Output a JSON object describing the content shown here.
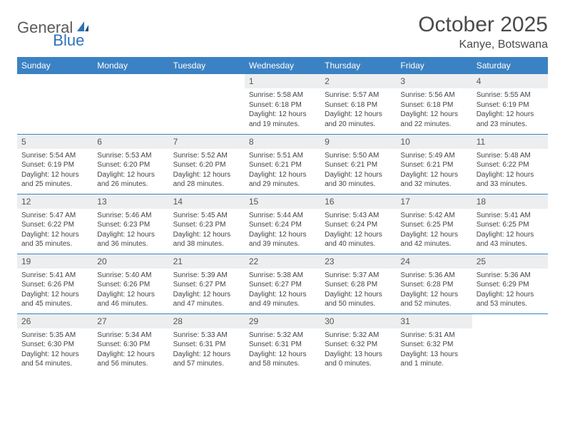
{
  "logo": {
    "general": "General",
    "blue": "Blue"
  },
  "title": "October 2025",
  "location": "Kanye, Botswana",
  "colors": {
    "header_bg": "#3b82c4",
    "header_text": "#ffffff",
    "daynum_bg": "#eceeef",
    "border": "#3b82c4",
    "text": "#444444",
    "logo_gray": "#5a5a5a",
    "logo_blue": "#2f72b8"
  },
  "day_headers": [
    "Sunday",
    "Monday",
    "Tuesday",
    "Wednesday",
    "Thursday",
    "Friday",
    "Saturday"
  ],
  "weeks": [
    [
      {
        "n": "",
        "sr": "",
        "ss": "",
        "dl": ""
      },
      {
        "n": "",
        "sr": "",
        "ss": "",
        "dl": ""
      },
      {
        "n": "",
        "sr": "",
        "ss": "",
        "dl": ""
      },
      {
        "n": "1",
        "sr": "Sunrise: 5:58 AM",
        "ss": "Sunset: 6:18 PM",
        "dl": "Daylight: 12 hours and 19 minutes."
      },
      {
        "n": "2",
        "sr": "Sunrise: 5:57 AM",
        "ss": "Sunset: 6:18 PM",
        "dl": "Daylight: 12 hours and 20 minutes."
      },
      {
        "n": "3",
        "sr": "Sunrise: 5:56 AM",
        "ss": "Sunset: 6:18 PM",
        "dl": "Daylight: 12 hours and 22 minutes."
      },
      {
        "n": "4",
        "sr": "Sunrise: 5:55 AM",
        "ss": "Sunset: 6:19 PM",
        "dl": "Daylight: 12 hours and 23 minutes."
      }
    ],
    [
      {
        "n": "5",
        "sr": "Sunrise: 5:54 AM",
        "ss": "Sunset: 6:19 PM",
        "dl": "Daylight: 12 hours and 25 minutes."
      },
      {
        "n": "6",
        "sr": "Sunrise: 5:53 AM",
        "ss": "Sunset: 6:20 PM",
        "dl": "Daylight: 12 hours and 26 minutes."
      },
      {
        "n": "7",
        "sr": "Sunrise: 5:52 AM",
        "ss": "Sunset: 6:20 PM",
        "dl": "Daylight: 12 hours and 28 minutes."
      },
      {
        "n": "8",
        "sr": "Sunrise: 5:51 AM",
        "ss": "Sunset: 6:21 PM",
        "dl": "Daylight: 12 hours and 29 minutes."
      },
      {
        "n": "9",
        "sr": "Sunrise: 5:50 AM",
        "ss": "Sunset: 6:21 PM",
        "dl": "Daylight: 12 hours and 30 minutes."
      },
      {
        "n": "10",
        "sr": "Sunrise: 5:49 AM",
        "ss": "Sunset: 6:21 PM",
        "dl": "Daylight: 12 hours and 32 minutes."
      },
      {
        "n": "11",
        "sr": "Sunrise: 5:48 AM",
        "ss": "Sunset: 6:22 PM",
        "dl": "Daylight: 12 hours and 33 minutes."
      }
    ],
    [
      {
        "n": "12",
        "sr": "Sunrise: 5:47 AM",
        "ss": "Sunset: 6:22 PM",
        "dl": "Daylight: 12 hours and 35 minutes."
      },
      {
        "n": "13",
        "sr": "Sunrise: 5:46 AM",
        "ss": "Sunset: 6:23 PM",
        "dl": "Daylight: 12 hours and 36 minutes."
      },
      {
        "n": "14",
        "sr": "Sunrise: 5:45 AM",
        "ss": "Sunset: 6:23 PM",
        "dl": "Daylight: 12 hours and 38 minutes."
      },
      {
        "n": "15",
        "sr": "Sunrise: 5:44 AM",
        "ss": "Sunset: 6:24 PM",
        "dl": "Daylight: 12 hours and 39 minutes."
      },
      {
        "n": "16",
        "sr": "Sunrise: 5:43 AM",
        "ss": "Sunset: 6:24 PM",
        "dl": "Daylight: 12 hours and 40 minutes."
      },
      {
        "n": "17",
        "sr": "Sunrise: 5:42 AM",
        "ss": "Sunset: 6:25 PM",
        "dl": "Daylight: 12 hours and 42 minutes."
      },
      {
        "n": "18",
        "sr": "Sunrise: 5:41 AM",
        "ss": "Sunset: 6:25 PM",
        "dl": "Daylight: 12 hours and 43 minutes."
      }
    ],
    [
      {
        "n": "19",
        "sr": "Sunrise: 5:41 AM",
        "ss": "Sunset: 6:26 PM",
        "dl": "Daylight: 12 hours and 45 minutes."
      },
      {
        "n": "20",
        "sr": "Sunrise: 5:40 AM",
        "ss": "Sunset: 6:26 PM",
        "dl": "Daylight: 12 hours and 46 minutes."
      },
      {
        "n": "21",
        "sr": "Sunrise: 5:39 AM",
        "ss": "Sunset: 6:27 PM",
        "dl": "Daylight: 12 hours and 47 minutes."
      },
      {
        "n": "22",
        "sr": "Sunrise: 5:38 AM",
        "ss": "Sunset: 6:27 PM",
        "dl": "Daylight: 12 hours and 49 minutes."
      },
      {
        "n": "23",
        "sr": "Sunrise: 5:37 AM",
        "ss": "Sunset: 6:28 PM",
        "dl": "Daylight: 12 hours and 50 minutes."
      },
      {
        "n": "24",
        "sr": "Sunrise: 5:36 AM",
        "ss": "Sunset: 6:28 PM",
        "dl": "Daylight: 12 hours and 52 minutes."
      },
      {
        "n": "25",
        "sr": "Sunrise: 5:36 AM",
        "ss": "Sunset: 6:29 PM",
        "dl": "Daylight: 12 hours and 53 minutes."
      }
    ],
    [
      {
        "n": "26",
        "sr": "Sunrise: 5:35 AM",
        "ss": "Sunset: 6:30 PM",
        "dl": "Daylight: 12 hours and 54 minutes."
      },
      {
        "n": "27",
        "sr": "Sunrise: 5:34 AM",
        "ss": "Sunset: 6:30 PM",
        "dl": "Daylight: 12 hours and 56 minutes."
      },
      {
        "n": "28",
        "sr": "Sunrise: 5:33 AM",
        "ss": "Sunset: 6:31 PM",
        "dl": "Daylight: 12 hours and 57 minutes."
      },
      {
        "n": "29",
        "sr": "Sunrise: 5:32 AM",
        "ss": "Sunset: 6:31 PM",
        "dl": "Daylight: 12 hours and 58 minutes."
      },
      {
        "n": "30",
        "sr": "Sunrise: 5:32 AM",
        "ss": "Sunset: 6:32 PM",
        "dl": "Daylight: 13 hours and 0 minutes."
      },
      {
        "n": "31",
        "sr": "Sunrise: 5:31 AM",
        "ss": "Sunset: 6:32 PM",
        "dl": "Daylight: 13 hours and 1 minute."
      },
      {
        "n": "",
        "sr": "",
        "ss": "",
        "dl": ""
      }
    ]
  ]
}
